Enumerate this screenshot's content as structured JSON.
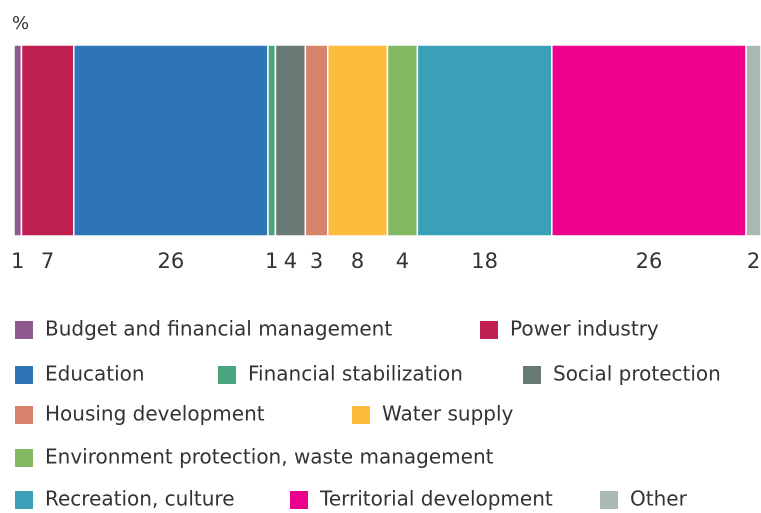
{
  "chart_data": {
    "type": "stacked_bar_100",
    "unit": "%",
    "series": [
      {
        "name": "Budget and financial management",
        "color": "#8e5a8e",
        "values": [
          1
        ]
      },
      {
        "name": "Power industry",
        "color": "#c0204f",
        "values": [
          7
        ]
      },
      {
        "name": "Education",
        "color": "#2e75b6",
        "values": [
          26
        ]
      },
      {
        "name": "Financial stabilization",
        "color": "#4aa57f",
        "values": [
          1
        ]
      },
      {
        "name": "Social protection",
        "color": "#6a7a76",
        "values": [
          4
        ]
      },
      {
        "name": "Housing development",
        "color": "#d9826c",
        "values": [
          3
        ]
      },
      {
        "name": "Water supply",
        "color": "#fbbc3d",
        "values": [
          8
        ]
      },
      {
        "name": "Environment protection, waste management",
        "color": "#84b761",
        "values": [
          4
        ]
      },
      {
        "name": "Recreation, culture",
        "color": "#3aa0b8",
        "values": [
          18
        ]
      },
      {
        "name": "Territorial development",
        "color": "#ec008c",
        "values": [
          26
        ]
      },
      {
        "name": "Other",
        "color": "#a9b8b0",
        "values": [
          2
        ]
      }
    ]
  }
}
